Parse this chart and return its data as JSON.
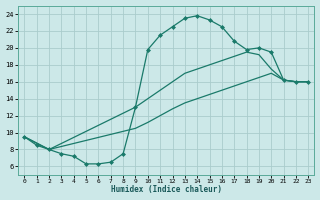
{
  "xlabel": "Humidex (Indice chaleur)",
  "bg_color": "#cce8e8",
  "grid_color": "#aacccc",
  "line_color": "#1a7a6a",
  "xlim": [
    -0.5,
    23.5
  ],
  "ylim": [
    5.0,
    25.0
  ],
  "xticks": [
    0,
    1,
    2,
    3,
    4,
    5,
    6,
    7,
    8,
    9,
    10,
    11,
    12,
    13,
    14,
    15,
    16,
    17,
    18,
    19,
    20,
    21,
    22,
    23
  ],
  "yticks": [
    6,
    8,
    10,
    12,
    14,
    16,
    18,
    20,
    22,
    24
  ],
  "line1_x": [
    0,
    1,
    2,
    3,
    4,
    5,
    6,
    7,
    8,
    9,
    10,
    11,
    12,
    13,
    14,
    15,
    16,
    17,
    18,
    19,
    20,
    21,
    22,
    23
  ],
  "line1_y": [
    9.5,
    8.5,
    8.0,
    7.5,
    7.2,
    6.3,
    6.3,
    6.5,
    7.5,
    13.0,
    19.8,
    21.5,
    22.5,
    23.5,
    23.8,
    23.3,
    22.5,
    20.8,
    19.8,
    20.0,
    19.5,
    16.2,
    16.0,
    16.0
  ],
  "line2_x": [
    0,
    2,
    9,
    10,
    11,
    12,
    13,
    14,
    15,
    16,
    17,
    18,
    19,
    20,
    21,
    22,
    23
  ],
  "line2_y": [
    9.5,
    8.0,
    13.0,
    14.0,
    15.0,
    16.0,
    17.0,
    17.5,
    18.0,
    18.5,
    19.0,
    19.5,
    19.2,
    17.5,
    16.2,
    16.0,
    16.0
  ],
  "line3_x": [
    0,
    2,
    9,
    10,
    11,
    12,
    13,
    14,
    15,
    16,
    17,
    18,
    19,
    20,
    21,
    22,
    23
  ],
  "line3_y": [
    9.5,
    8.0,
    10.5,
    11.2,
    12.0,
    12.8,
    13.5,
    14.0,
    14.5,
    15.0,
    15.5,
    16.0,
    16.5,
    17.0,
    16.2,
    16.0,
    16.0
  ]
}
